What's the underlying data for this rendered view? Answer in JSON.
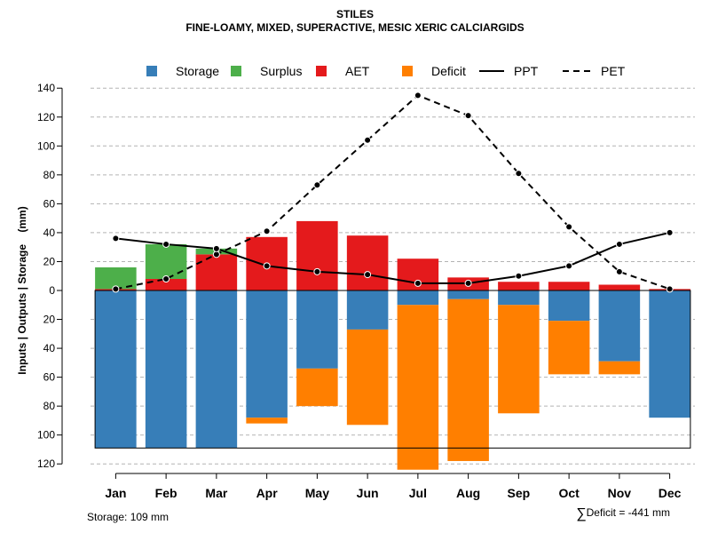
{
  "header": {
    "title": "STILES",
    "subtitle": "FINE-LOAMY, MIXED, SUPERACTIVE, MESIC XERIC CALCIARGIDS"
  },
  "footer": {
    "storage_text": "Storage: 109 mm",
    "deficit_symbol": "∑",
    "deficit_text": "Deficit = -441 mm"
  },
  "colors": {
    "storage": "#377EB8",
    "surplus": "#4DAF4A",
    "aet": "#E41A1C",
    "deficit": "#FF7F00",
    "ppt": "#000000",
    "pet": "#000000"
  },
  "chart_data": {
    "type": "bar",
    "title": "STILES",
    "subtitle": "FINE-LOAMY, MIXED, SUPERACTIVE, MESIC XERIC CALCIARGIDS",
    "ylabel": "Inputs | Outputs | Storage    (mm)",
    "xlabel": "",
    "ylim": [
      -120,
      140
    ],
    "yticks": [
      140,
      120,
      100,
      80,
      60,
      40,
      20,
      0,
      -20,
      -40,
      -60,
      -80,
      -100,
      -120
    ],
    "ytick_labels": [
      "140",
      "120",
      "100",
      "80",
      "60",
      "40",
      "20",
      "0",
      "20",
      "40",
      "60",
      "80",
      "100",
      "120"
    ],
    "grid": true,
    "legend_position": "top",
    "legend": [
      {
        "label": "Storage",
        "kind": "box",
        "color_key": "storage"
      },
      {
        "label": "Surplus",
        "kind": "box",
        "color_key": "surplus"
      },
      {
        "label": "AET",
        "kind": "box",
        "color_key": "aet"
      },
      {
        "label": "Deficit",
        "kind": "box",
        "color_key": "deficit"
      },
      {
        "label": "PPT",
        "kind": "solid-line",
        "color_key": "ppt"
      },
      {
        "label": "PET",
        "kind": "dashed-line",
        "color_key": "pet"
      }
    ],
    "categories": [
      "Jan",
      "Feb",
      "Mar",
      "Apr",
      "May",
      "Jun",
      "Jul",
      "Aug",
      "Sep",
      "Oct",
      "Nov",
      "Dec"
    ],
    "storage_capacity": 109,
    "series": [
      {
        "name": "AET",
        "values": [
          1,
          8,
          25,
          37,
          48,
          38,
          22,
          9,
          6,
          6,
          4,
          1
        ]
      },
      {
        "name": "Surplus",
        "values": [
          15,
          24,
          4,
          0,
          0,
          0,
          0,
          0,
          0,
          0,
          0,
          0
        ]
      },
      {
        "name": "Storage",
        "values": [
          109,
          109,
          109,
          88,
          54,
          27,
          10,
          6,
          10,
          21,
          49,
          88
        ]
      },
      {
        "name": "Deficit",
        "values": [
          0,
          0,
          0,
          4,
          26,
          66,
          114,
          112,
          75,
          37,
          9,
          0
        ]
      },
      {
        "name": "PPT",
        "values": [
          36,
          32,
          29,
          17,
          13,
          11,
          5,
          5,
          10,
          17,
          32,
          40
        ]
      },
      {
        "name": "PET",
        "values": [
          1,
          8,
          25,
          41,
          73,
          104,
          135,
          121,
          81,
          44,
          13,
          1
        ]
      }
    ]
  }
}
